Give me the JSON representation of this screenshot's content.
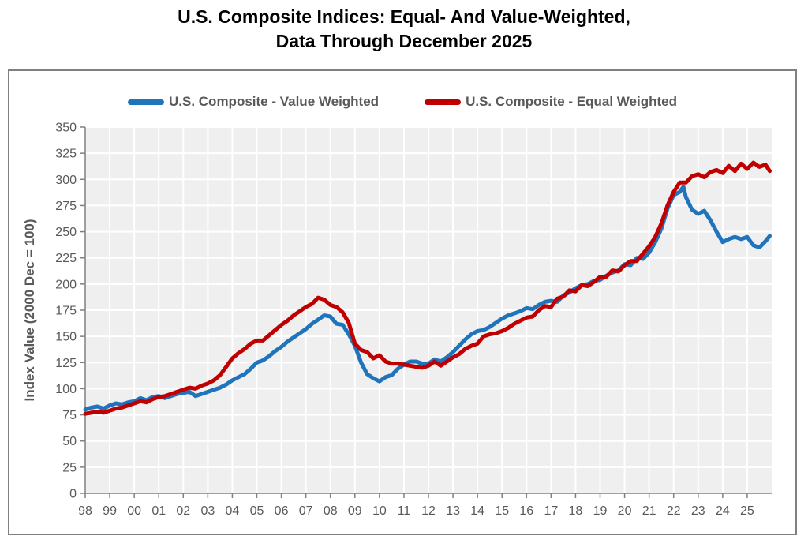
{
  "title": {
    "line1": "U.S. Composite Indices: Equal- And Value-Weighted,",
    "line2": "Data Through December 2025"
  },
  "legend": [
    {
      "label": "U.S. Composite - Value Weighted",
      "color": "#1F74BB"
    },
    {
      "label": "U.S. Composite - Equal Weighted",
      "color": "#C00000"
    }
  ],
  "chart_data": {
    "type": "line",
    "title": "U.S. Composite Indices: Equal- And Value-Weighted, Data Through December 2025",
    "xlabel": "",
    "ylabel": "Index Value (2000 Dec = 100)",
    "ylim": [
      0,
      350
    ],
    "ytick_step": 25,
    "x_range": [
      1998,
      2026
    ],
    "x_tick_years": [
      1998,
      1999,
      2000,
      2001,
      2002,
      2003,
      2004,
      2005,
      2006,
      2007,
      2008,
      2009,
      2010,
      2011,
      2012,
      2013,
      2014,
      2015,
      2016,
      2017,
      2018,
      2019,
      2020,
      2021,
      2022,
      2023,
      2024,
      2025
    ],
    "x_tick_labels": [
      "98",
      "99",
      "00",
      "01",
      "02",
      "03",
      "04",
      "05",
      "06",
      "07",
      "08",
      "09",
      "10",
      "11",
      "12",
      "13",
      "14",
      "15",
      "16",
      "17",
      "18",
      "19",
      "20",
      "21",
      "22",
      "23",
      "24",
      "25"
    ],
    "grid": true,
    "legend_position": "top",
    "plot_background": "#EFEFEF",
    "gridline_color": "#FFFFFF",
    "axis_color": "#808080",
    "tick_label_color": "#595959",
    "line_width": 5,
    "series": [
      {
        "name": "U.S. Composite - Value Weighted",
        "color": "#1F74BB",
        "points": [
          [
            1998.0,
            80
          ],
          [
            1998.25,
            82
          ],
          [
            1998.5,
            83
          ],
          [
            1998.75,
            81
          ],
          [
            1999.0,
            84
          ],
          [
            1999.25,
            86
          ],
          [
            1999.5,
            85
          ],
          [
            1999.75,
            87
          ],
          [
            2000.0,
            88
          ],
          [
            2000.25,
            91
          ],
          [
            2000.5,
            89
          ],
          [
            2000.75,
            92
          ],
          [
            2001.0,
            93
          ],
          [
            2001.25,
            91
          ],
          [
            2001.5,
            93
          ],
          [
            2001.75,
            95
          ],
          [
            2002.0,
            96
          ],
          [
            2002.25,
            97
          ],
          [
            2002.5,
            93
          ],
          [
            2002.75,
            95
          ],
          [
            2003.0,
            97
          ],
          [
            2003.25,
            99
          ],
          [
            2003.5,
            101
          ],
          [
            2003.75,
            104
          ],
          [
            2004.0,
            108
          ],
          [
            2004.25,
            111
          ],
          [
            2004.5,
            114
          ],
          [
            2004.75,
            119
          ],
          [
            2005.0,
            125
          ],
          [
            2005.25,
            127
          ],
          [
            2005.5,
            131
          ],
          [
            2005.75,
            136
          ],
          [
            2006.0,
            140
          ],
          [
            2006.25,
            145
          ],
          [
            2006.5,
            149
          ],
          [
            2006.75,
            153
          ],
          [
            2007.0,
            157
          ],
          [
            2007.25,
            162
          ],
          [
            2007.5,
            166
          ],
          [
            2007.75,
            170
          ],
          [
            2008.0,
            169
          ],
          [
            2008.25,
            162
          ],
          [
            2008.5,
            161
          ],
          [
            2008.75,
            152
          ],
          [
            2009.0,
            141
          ],
          [
            2009.25,
            125
          ],
          [
            2009.5,
            114
          ],
          [
            2009.75,
            110
          ],
          [
            2010.0,
            107
          ],
          [
            2010.25,
            111
          ],
          [
            2010.5,
            113
          ],
          [
            2010.75,
            119
          ],
          [
            2011.0,
            123
          ],
          [
            2011.25,
            126
          ],
          [
            2011.5,
            126
          ],
          [
            2011.75,
            124
          ],
          [
            2012.0,
            124
          ],
          [
            2012.25,
            128
          ],
          [
            2012.5,
            126
          ],
          [
            2012.75,
            130
          ],
          [
            2013.0,
            135
          ],
          [
            2013.25,
            141
          ],
          [
            2013.5,
            147
          ],
          [
            2013.75,
            152
          ],
          [
            2014.0,
            155
          ],
          [
            2014.25,
            156
          ],
          [
            2014.5,
            159
          ],
          [
            2014.75,
            163
          ],
          [
            2015.0,
            167
          ],
          [
            2015.25,
            170
          ],
          [
            2015.5,
            172
          ],
          [
            2015.75,
            174
          ],
          [
            2016.0,
            177
          ],
          [
            2016.25,
            176
          ],
          [
            2016.5,
            180
          ],
          [
            2016.75,
            183
          ],
          [
            2017.0,
            184
          ],
          [
            2017.25,
            183
          ],
          [
            2017.5,
            189
          ],
          [
            2017.75,
            192
          ],
          [
            2018.0,
            196
          ],
          [
            2018.25,
            199
          ],
          [
            2018.5,
            200
          ],
          [
            2018.75,
            203
          ],
          [
            2019.0,
            204
          ],
          [
            2019.25,
            208
          ],
          [
            2019.5,
            211
          ],
          [
            2019.75,
            213
          ],
          [
            2020.0,
            219
          ],
          [
            2020.25,
            218
          ],
          [
            2020.5,
            225
          ],
          [
            2020.75,
            224
          ],
          [
            2021.0,
            230
          ],
          [
            2021.25,
            240
          ],
          [
            2021.5,
            253
          ],
          [
            2021.75,
            272
          ],
          [
            2022.0,
            285
          ],
          [
            2022.25,
            288
          ],
          [
            2022.4,
            293
          ],
          [
            2022.5,
            283
          ],
          [
            2022.75,
            271
          ],
          [
            2023.0,
            267
          ],
          [
            2023.25,
            270
          ],
          [
            2023.5,
            261
          ],
          [
            2023.75,
            250
          ],
          [
            2024.0,
            240
          ],
          [
            2024.25,
            243
          ],
          [
            2024.5,
            245
          ],
          [
            2024.75,
            243
          ],
          [
            2025.0,
            245
          ],
          [
            2025.25,
            237
          ],
          [
            2025.5,
            235
          ],
          [
            2025.75,
            241
          ],
          [
            2025.92,
            246
          ]
        ]
      },
      {
        "name": "U.S. Composite - Equal Weighted",
        "color": "#C00000",
        "points": [
          [
            1998.0,
            76
          ],
          [
            1998.25,
            77
          ],
          [
            1998.5,
            78
          ],
          [
            1998.75,
            77
          ],
          [
            1999.0,
            79
          ],
          [
            1999.25,
            81
          ],
          [
            1999.5,
            82
          ],
          [
            1999.75,
            84
          ],
          [
            2000.0,
            86
          ],
          [
            2000.25,
            88
          ],
          [
            2000.5,
            87
          ],
          [
            2000.75,
            90
          ],
          [
            2001.0,
            92
          ],
          [
            2001.25,
            93
          ],
          [
            2001.5,
            95
          ],
          [
            2001.75,
            97
          ],
          [
            2002.0,
            99
          ],
          [
            2002.25,
            101
          ],
          [
            2002.5,
            100
          ],
          [
            2002.75,
            103
          ],
          [
            2003.0,
            105
          ],
          [
            2003.25,
            108
          ],
          [
            2003.5,
            113
          ],
          [
            2003.75,
            121
          ],
          [
            2004.0,
            129
          ],
          [
            2004.25,
            134
          ],
          [
            2004.5,
            138
          ],
          [
            2004.75,
            143
          ],
          [
            2005.0,
            146
          ],
          [
            2005.25,
            146
          ],
          [
            2005.5,
            151
          ],
          [
            2005.75,
            156
          ],
          [
            2006.0,
            161
          ],
          [
            2006.25,
            165
          ],
          [
            2006.5,
            170
          ],
          [
            2006.75,
            174
          ],
          [
            2007.0,
            178
          ],
          [
            2007.25,
            181
          ],
          [
            2007.5,
            187
          ],
          [
            2007.75,
            185
          ],
          [
            2008.0,
            180
          ],
          [
            2008.25,
            178
          ],
          [
            2008.5,
            173
          ],
          [
            2008.75,
            163
          ],
          [
            2009.0,
            143
          ],
          [
            2009.25,
            137
          ],
          [
            2009.5,
            135
          ],
          [
            2009.75,
            129
          ],
          [
            2010.0,
            132
          ],
          [
            2010.25,
            126
          ],
          [
            2010.5,
            124
          ],
          [
            2010.75,
            124
          ],
          [
            2011.0,
            123
          ],
          [
            2011.25,
            122
          ],
          [
            2011.5,
            121
          ],
          [
            2011.75,
            120
          ],
          [
            2012.0,
            122
          ],
          [
            2012.25,
            126
          ],
          [
            2012.5,
            122
          ],
          [
            2012.75,
            126
          ],
          [
            2013.0,
            130
          ],
          [
            2013.25,
            133
          ],
          [
            2013.5,
            138
          ],
          [
            2013.75,
            141
          ],
          [
            2014.0,
            143
          ],
          [
            2014.25,
            150
          ],
          [
            2014.5,
            152
          ],
          [
            2014.75,
            153
          ],
          [
            2015.0,
            155
          ],
          [
            2015.25,
            158
          ],
          [
            2015.5,
            162
          ],
          [
            2015.75,
            165
          ],
          [
            2016.0,
            168
          ],
          [
            2016.25,
            169
          ],
          [
            2016.5,
            175
          ],
          [
            2016.75,
            179
          ],
          [
            2017.0,
            178
          ],
          [
            2017.25,
            186
          ],
          [
            2017.5,
            188
          ],
          [
            2017.75,
            194
          ],
          [
            2018.0,
            193
          ],
          [
            2018.25,
            199
          ],
          [
            2018.5,
            198
          ],
          [
            2018.75,
            202
          ],
          [
            2019.0,
            207
          ],
          [
            2019.25,
            207
          ],
          [
            2019.5,
            213
          ],
          [
            2019.75,
            212
          ],
          [
            2020.0,
            218
          ],
          [
            2020.25,
            222
          ],
          [
            2020.5,
            222
          ],
          [
            2020.75,
            229
          ],
          [
            2021.0,
            236
          ],
          [
            2021.25,
            245
          ],
          [
            2021.5,
            258
          ],
          [
            2021.75,
            275
          ],
          [
            2022.0,
            288
          ],
          [
            2022.25,
            297
          ],
          [
            2022.5,
            297
          ],
          [
            2022.75,
            303
          ],
          [
            2023.0,
            305
          ],
          [
            2023.25,
            302
          ],
          [
            2023.5,
            307
          ],
          [
            2023.75,
            309
          ],
          [
            2024.0,
            306
          ],
          [
            2024.25,
            313
          ],
          [
            2024.5,
            308
          ],
          [
            2024.75,
            315
          ],
          [
            2025.0,
            310
          ],
          [
            2025.25,
            316
          ],
          [
            2025.5,
            312
          ],
          [
            2025.75,
            314
          ],
          [
            2025.92,
            308
          ]
        ]
      }
    ]
  }
}
